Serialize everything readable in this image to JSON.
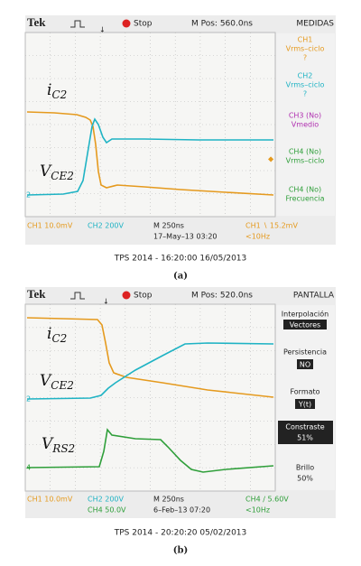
{
  "panel_a": {
    "header": {
      "brand": "Tek",
      "status": "Stop",
      "position": "M Pos: 560.0ns",
      "menu_title": "MEDIDAS"
    },
    "menu": [
      {
        "lines": [
          "CH1",
          "Vrms–ciclo",
          "?"
        ]
      },
      {
        "lines": [
          "CH2",
          "Vrms–ciclo",
          "?"
        ]
      },
      {
        "lines": [
          "CH3 (No)",
          "Vmedio"
        ]
      },
      {
        "lines": [
          "CH4 (No)",
          "Vrms–ciclo"
        ]
      },
      {
        "lines": [
          "CH4 (No)",
          "Frecuencia"
        ]
      }
    ],
    "trace_labels": [
      {
        "text": "i",
        "sub": "C2"
      },
      {
        "text": "V",
        "sub": "CE2"
      }
    ],
    "channel_markers": [
      "2"
    ],
    "footer": {
      "ch1": "CH1 10.0mV",
      "ch2": "CH2 200V",
      "timebase": "M 250ns",
      "date": "17–May–13 03:20",
      "trigger": "CH1 ∖ 15.2mV",
      "freq": "<10Hz"
    },
    "caption": "TPS 2014 - 16:20:00 16/05/2013",
    "label": "(a)"
  },
  "panel_b": {
    "header": {
      "brand": "Tek",
      "status": "Stop",
      "position": "M Pos: 520.0ns",
      "menu_title": "PANTALLA"
    },
    "menu": [
      {
        "lines": [
          "Interpolación",
          "Vectores"
        ]
      },
      {
        "lines": [
          "Persistencia",
          "NO"
        ]
      },
      {
        "lines": [
          "Formato",
          "Y(t)"
        ]
      },
      {
        "lines": [
          "Constraste",
          "51%"
        ]
      },
      {
        "lines": [
          "Brillo",
          "50%"
        ]
      }
    ],
    "trace_labels": [
      {
        "text": "i",
        "sub": "C2"
      },
      {
        "text": "V",
        "sub": "CE2"
      },
      {
        "text": "V",
        "sub": "RS2"
      }
    ],
    "channel_markers": [
      "2",
      "4"
    ],
    "footer": {
      "ch1": "CH1 10.0mV",
      "ch2": "CH2 200V",
      "timebase": "M 250ns",
      "trigger": "CH4 ∕ 5.60V",
      "ch4": "CH4 50.0V",
      "date": "6–Feb–13 07:20",
      "freq": "<10Hz"
    },
    "caption": "TPS 2014 - 20:20:20 05/02/2013",
    "label": "(b)"
  }
}
